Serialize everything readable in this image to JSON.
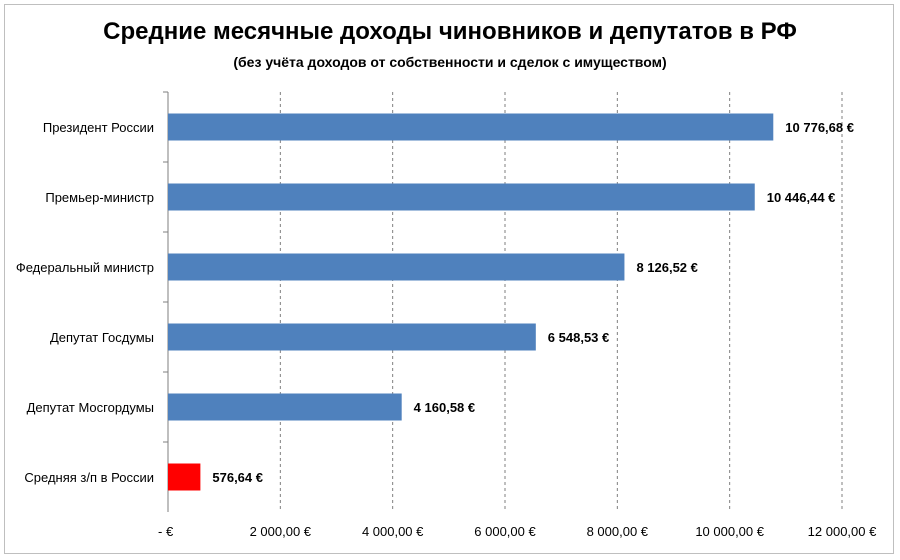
{
  "chart_data": {
    "type": "bar",
    "orientation": "horizontal",
    "title": "Средние месячные доходы чиновников и депутатов в РФ",
    "subtitle": "(без учёта доходов от собственности и сделок с имуществом)",
    "categories": [
      "Президент России",
      "Премьер-министр",
      "Федеральный министр",
      "Депутат Госдумы",
      "Депутат Мосгордумы",
      "Средняя з/п в России"
    ],
    "values": [
      10776.68,
      10446.44,
      8126.52,
      6548.53,
      4160.58,
      576.64
    ],
    "value_labels": [
      "10 776,68 €",
      "10 446,44 €",
      "8 126,52 €",
      "6 548,53 €",
      "4 160,58 €",
      "576,64 €"
    ],
    "colors": [
      "#4f81bd",
      "#4f81bd",
      "#4f81bd",
      "#4f81bd",
      "#4f81bd",
      "#ff0000"
    ],
    "xlim": [
      0,
      12000
    ],
    "xticks": [
      0,
      2000,
      4000,
      6000,
      8000,
      10000,
      12000
    ],
    "xtick_labels": [
      "-   €",
      "2 000,00 €",
      "4 000,00 €",
      "6 000,00 €",
      "8 000,00 €",
      "10 000,00 €",
      "12 000,00 €"
    ],
    "grid": "vertical-dashed",
    "legend": "none"
  }
}
